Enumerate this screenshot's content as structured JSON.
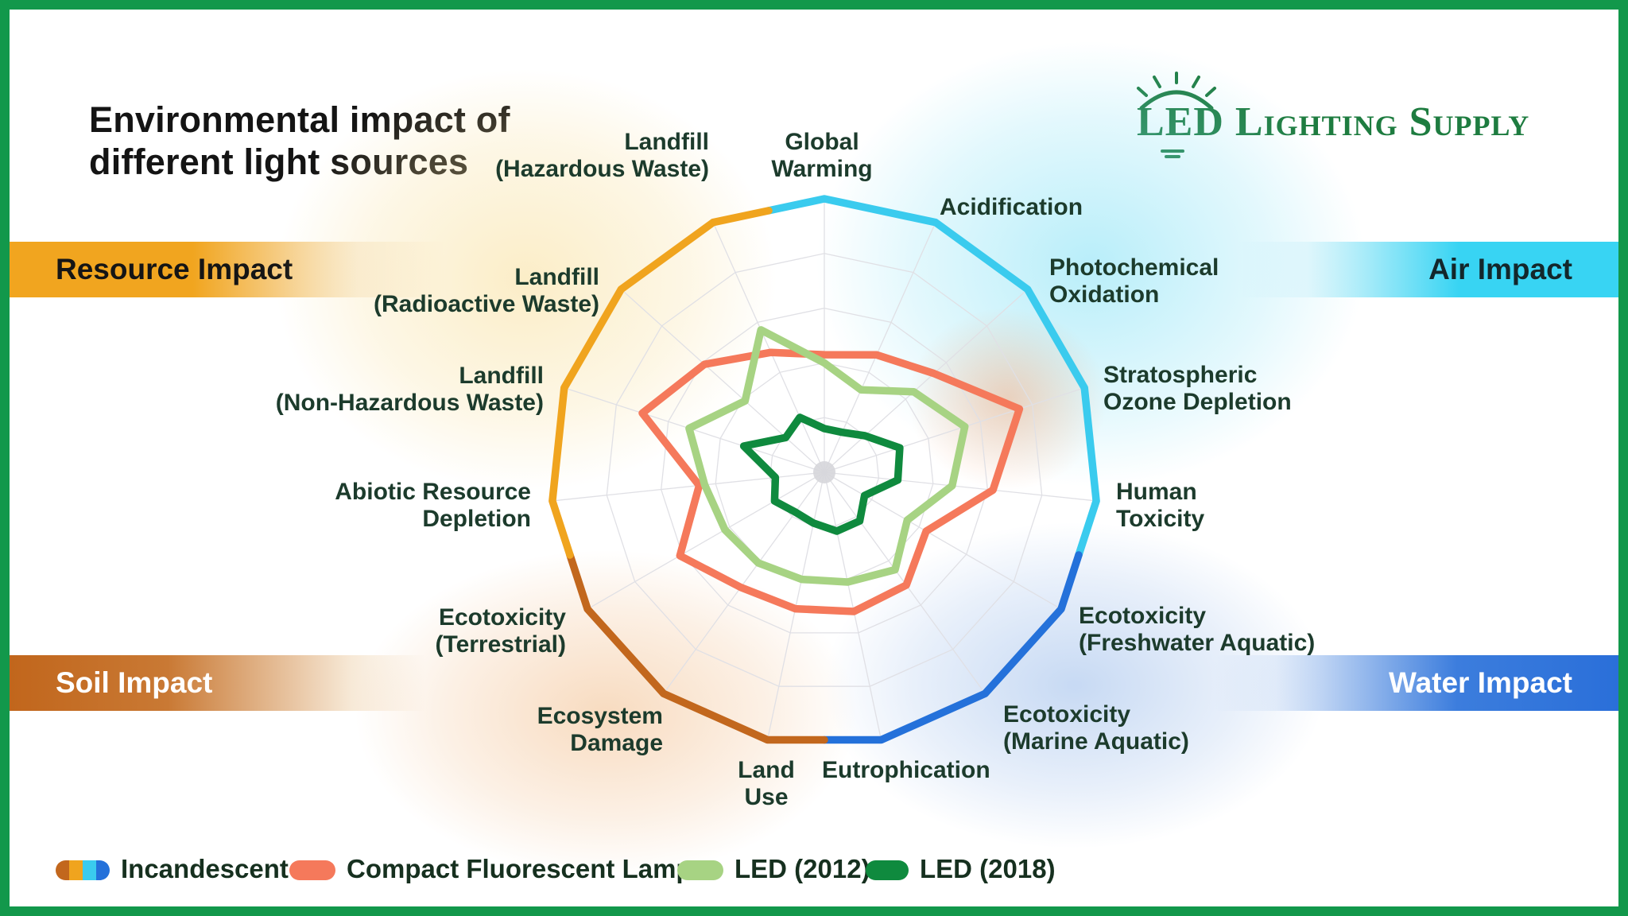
{
  "title": {
    "line1": "Environmental impact of",
    "line2": "different light sources"
  },
  "logo": {
    "text": "LED Lighting Supply",
    "color": "#1E7C40",
    "icon": "light-bulb-rays-icon"
  },
  "impact_bars": [
    {
      "id": "resource",
      "label": "Resource Impact",
      "color": "#F1A51F",
      "text_color": "#151515"
    },
    {
      "id": "air",
      "label": "Air Impact",
      "color": "#38D4F3",
      "text_color": "#13272B"
    },
    {
      "id": "soil",
      "label": "Soil Impact",
      "color": "#C1661C",
      "text_color": "#FFFFFF"
    },
    {
      "id": "water",
      "label": "Water Impact",
      "color": "#2A6FD9",
      "text_color": "#FFFFFF"
    }
  ],
  "chart_data": {
    "type": "radar",
    "rmax": 100,
    "grid_rings": [
      20,
      40,
      60,
      80,
      100
    ],
    "grid_color": "#E0E0E5",
    "categories": [
      "Global Warming",
      "Acidification",
      "Photochemical Oxidation",
      "Stratospheric Ozone Depletion",
      "Human Toxicity",
      "Ecotoxicity (Freshwater Aquatic)",
      "Ecotoxicity (Marine Aquatic)",
      "Eutrophication",
      "Land Use",
      "Ecosystem Damage",
      "Ecotoxicity (Terrestrial)",
      "Abiotic Resource Depletion",
      "Landfill (Non-Hazardous Waste)",
      "Landfill (Radioactive Waste)",
      "Landfill (Hazardous Waste)"
    ],
    "axis_label_lines": [
      [
        "Global",
        "Warming"
      ],
      [
        "Acidification"
      ],
      [
        "Photochemical",
        "Oxidation"
      ],
      [
        "Stratospheric",
        "Ozone Depletion"
      ],
      [
        "Human",
        "Toxicity"
      ],
      [
        "Ecotoxicity",
        "(Freshwater Aquatic)"
      ],
      [
        "Ecotoxicity",
        "(Marine Aquatic)"
      ],
      [
        "Eutrophication"
      ],
      [
        "Land",
        "Use"
      ],
      [
        "Ecosystem",
        "Damage"
      ],
      [
        "Ecotoxicity",
        "(Terrestrial)"
      ],
      [
        "Abiotic Resource",
        "Depletion"
      ],
      [
        "Landfill",
        "(Non-Hazardous Waste)"
      ],
      [
        "Landfill",
        "(Radioactive Waste)"
      ],
      [
        "Landfill",
        "(Hazardous Waste)"
      ]
    ],
    "series": [
      {
        "name": "Incandescent",
        "values": [
          100,
          100,
          100,
          100,
          100,
          100,
          100,
          100,
          100,
          100,
          100,
          100,
          100,
          100,
          100
        ],
        "segmented": true,
        "segment_colors": {
          "air": "#3ACBEE",
          "water": "#2471DA",
          "soil": "#C2671D",
          "resource": "#F0A41E"
        },
        "segment_groups": {
          "air": [
            0,
            4
          ],
          "water": [
            5,
            7
          ],
          "soil": [
            8,
            10
          ],
          "resource": [
            11,
            14
          ]
        }
      },
      {
        "name": "Compact Fluorescent Lamps",
        "color": "#F5795B",
        "values": [
          43,
          47,
          54,
          75,
          62,
          43,
          51,
          52,
          51,
          52,
          61,
          46,
          70,
          59,
          48
        ]
      },
      {
        "name": "LED (2012)",
        "color": "#A7D383",
        "values": [
          40,
          33,
          44,
          54,
          47,
          35,
          44,
          41,
          40,
          41,
          42,
          44,
          52,
          39,
          57
        ]
      },
      {
        "name": "LED (2018)",
        "color": "#0F8A3E",
        "values": [
          16,
          16,
          20,
          29,
          27,
          17,
          22,
          22,
          19,
          18,
          21,
          18,
          31,
          19,
          22
        ]
      }
    ],
    "legend_position": "bottom"
  },
  "legend": {
    "items": [
      {
        "label": "Incandescent",
        "swatch_colors": [
          "#C2671D",
          "#F0A41E",
          "#3ACBEE",
          "#2471DA"
        ]
      },
      {
        "label": "Compact Fluorescent Lamps",
        "swatch_colors": [
          "#F5795B"
        ]
      },
      {
        "label": "LED (2012)",
        "swatch_colors": [
          "#A7D383"
        ]
      },
      {
        "label": "LED (2018)",
        "swatch_colors": [
          "#0F8A3E"
        ]
      }
    ]
  }
}
